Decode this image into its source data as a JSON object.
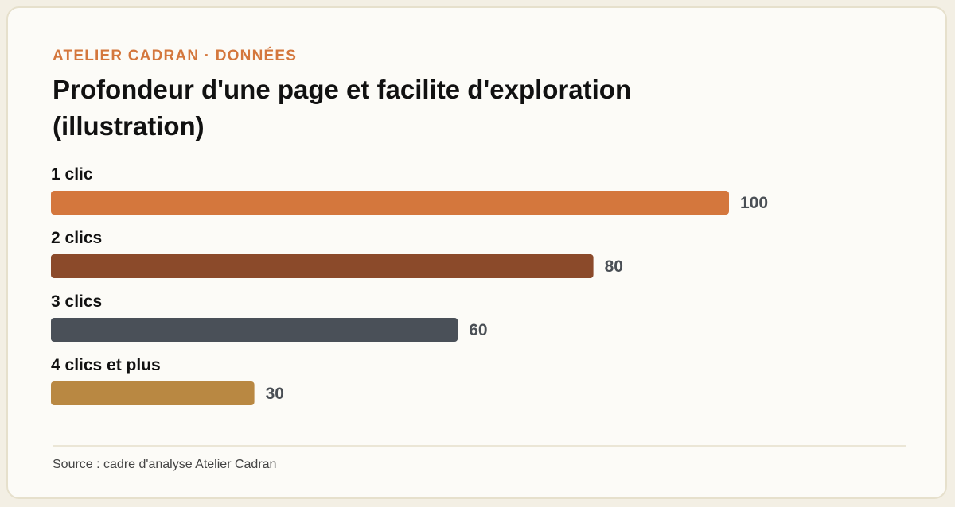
{
  "header": {
    "eyebrow": "ATELIER CADRAN · DONNÉES",
    "title": "Profondeur d'une page et facilite d'exploration (illustration)"
  },
  "chart_data": {
    "type": "bar",
    "orientation": "horizontal",
    "title": "Profondeur d'une page et facilite d'exploration (illustration)",
    "categories": [
      "1 clic",
      "2 clics",
      "3 clics",
      "4 clics et plus"
    ],
    "values": [
      100,
      80,
      60,
      30
    ],
    "value_labels": [
      "100",
      "80",
      "60",
      "30"
    ],
    "colors": [
      "#d4773d",
      "#8b4a2a",
      "#4a5058",
      "#b98842"
    ],
    "xlim": [
      0,
      100
    ],
    "xlabel": "",
    "ylabel": "",
    "grid": false,
    "legend": "none"
  },
  "footer": {
    "source": "Source : cadre d'analyse Atelier Cadran"
  }
}
